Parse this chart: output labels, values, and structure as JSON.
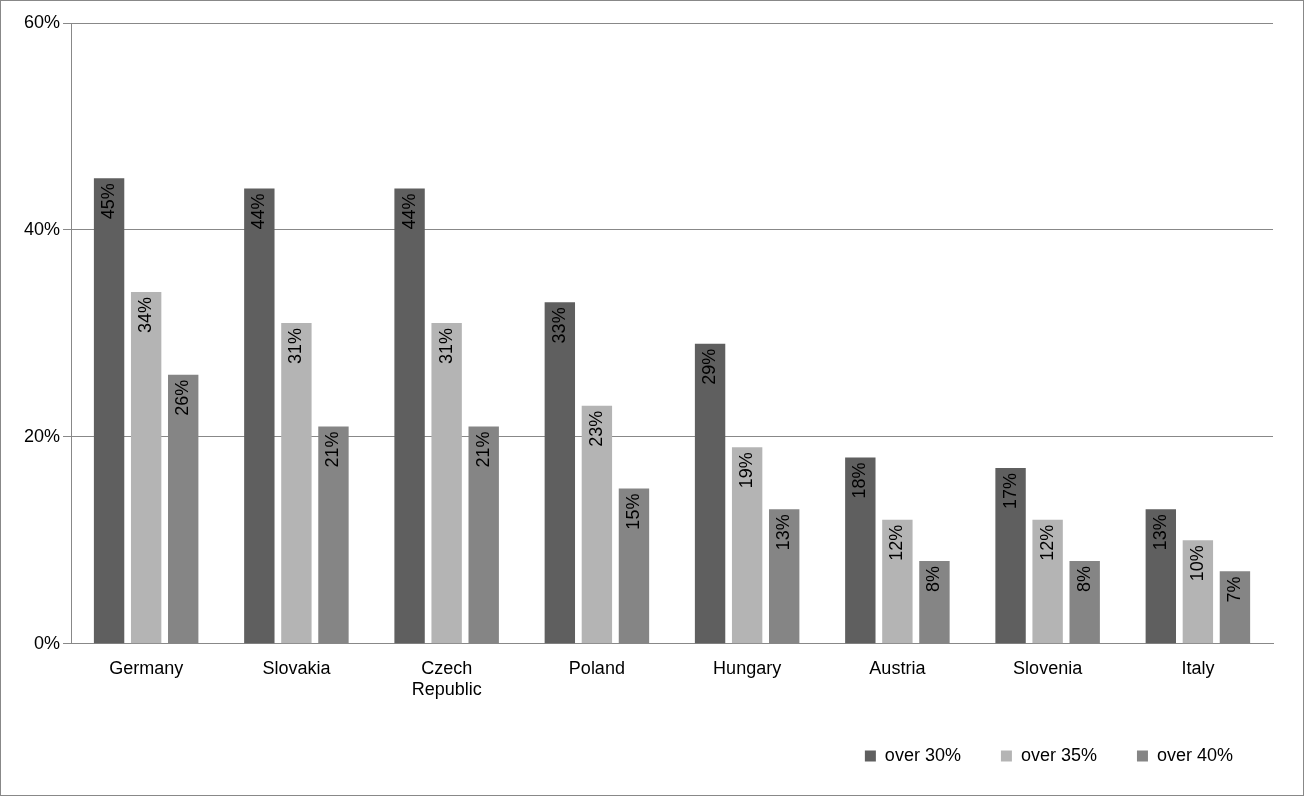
{
  "chart_data": {
    "type": "bar",
    "categories": [
      "Germany",
      "Slovakia",
      "Czech Republic",
      "Poland",
      "Hungary",
      "Austria",
      "Slovenia",
      "Italy"
    ],
    "series": [
      {
        "name": "over 30%",
        "color": "#5f5f5f",
        "values": [
          45,
          44,
          44,
          33,
          29,
          18,
          17,
          13
        ],
        "value_labels": [
          "45%",
          "44%",
          "44%",
          "33%",
          "29%",
          "18%",
          "17%",
          "13%"
        ]
      },
      {
        "name": "over 35%",
        "color": "#b4b4b4",
        "values": [
          34,
          31,
          31,
          23,
          19,
          12,
          12,
          10
        ],
        "value_labels": [
          "34%",
          "31%",
          "31%",
          "23%",
          "19%",
          "12%",
          "12%",
          "10%"
        ]
      },
      {
        "name": "over 40%",
        "color": "#858585",
        "values": [
          26,
          21,
          21,
          15,
          13,
          8,
          8,
          7
        ],
        "value_labels": [
          "26%",
          "21%",
          "21%",
          "15%",
          "13%",
          "8%",
          "8%",
          "7%"
        ]
      }
    ],
    "ylim": [
      0,
      60
    ],
    "yticks": [
      {
        "value": 0,
        "label": "0%"
      },
      {
        "value": 20,
        "label": "20%"
      },
      {
        "value": 40,
        "label": "40%"
      },
      {
        "value": 60,
        "label": "60%"
      }
    ],
    "grid": "y",
    "legend": "bottom"
  }
}
